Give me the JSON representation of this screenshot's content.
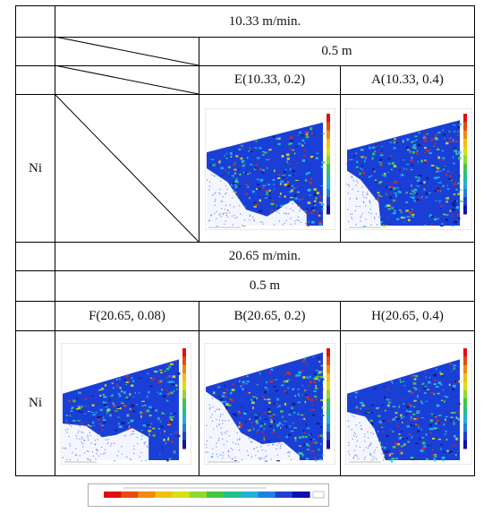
{
  "table": {
    "section_1": {
      "speed": "10.33 m/min.",
      "depth": "0.5 m",
      "columns": [
        "E(10.33, 0.2)",
        "A(10.33, 0.4)"
      ],
      "row_label": "Ni"
    },
    "section_2": {
      "speed": "20.65 m/min.",
      "depth": "0.5 m",
      "columns": [
        "F(20.65, 0.08)",
        "B(20.65, 0.2)",
        "H(20.65, 0.4)"
      ],
      "row_label": "Ni"
    }
  },
  "colors": {
    "map_blue": "#1a3fd6",
    "map_cyan": "#21c4e8",
    "map_green": "#3fd64b",
    "map_yellow": "#e8e021",
    "map_red": "#e02a1a",
    "map_navy": "#0a1a80",
    "colorbar": [
      "#e01010",
      "#e84a10",
      "#f08a10",
      "#f0c010",
      "#d8e010",
      "#90d830",
      "#40c840",
      "#20c090",
      "#20b0d8",
      "#2080e0",
      "#2040d0",
      "#1010b0"
    ]
  }
}
